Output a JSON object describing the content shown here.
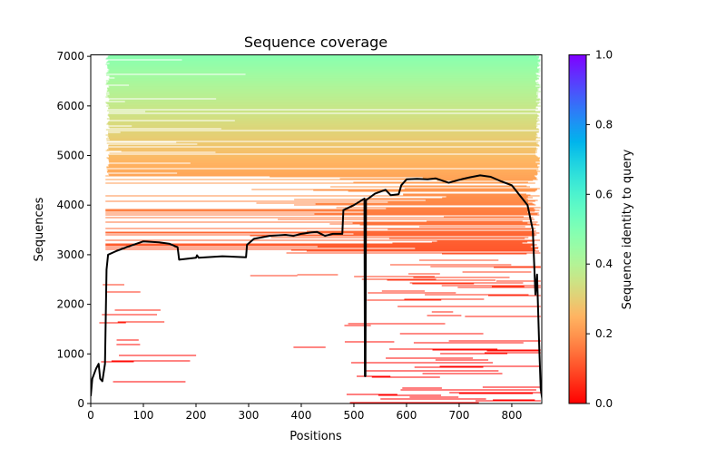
{
  "chart_data": {
    "type": "line",
    "title": "Sequence coverage",
    "xlabel": "Positions",
    "ylabel": "Sequences",
    "xlim": [
      0,
      857
    ],
    "ylim": [
      0,
      7030
    ],
    "xticks": [
      "0",
      "100",
      "200",
      "300",
      "400",
      "500",
      "600",
      "700",
      "800"
    ],
    "yticks": [
      "0",
      "1000",
      "2000",
      "3000",
      "4000",
      "5000",
      "6000",
      "7000"
    ],
    "grid": false,
    "coverage_line": {
      "color": "#000000",
      "x": [
        0,
        3,
        10,
        15,
        18,
        22,
        27,
        30,
        33,
        50,
        70,
        100,
        130,
        150,
        165,
        168,
        200,
        202,
        205,
        250,
        295,
        297,
        310,
        340,
        370,
        385,
        400,
        420,
        430,
        445,
        460,
        478,
        480,
        500,
        515,
        520,
        521,
        522,
        523,
        540,
        560,
        570,
        585,
        590,
        600,
        620,
        640,
        655,
        680,
        700,
        720,
        740,
        760,
        780,
        800,
        815,
        830,
        840,
        845,
        848,
        852,
        855,
        858
      ],
      "y": [
        150,
        500,
        700,
        800,
        500,
        450,
        800,
        2700,
        3000,
        3080,
        3160,
        3270,
        3250,
        3220,
        3150,
        2900,
        2940,
        2990,
        2940,
        2970,
        2950,
        3200,
        3320,
        3380,
        3400,
        3380,
        3420,
        3450,
        3460,
        3380,
        3420,
        3420,
        3900,
        4000,
        4100,
        4130,
        550,
        550,
        4100,
        4230,
        4310,
        4200,
        4220,
        4400,
        4520,
        4530,
        4520,
        4540,
        4450,
        4510,
        4560,
        4600,
        4570,
        4480,
        4400,
        4200,
        4000,
        3500,
        2200,
        2600,
        1200,
        300,
        80
      ]
    },
    "colorbar": {
      "label": "Sequence identity to query",
      "range": [
        0,
        1
      ],
      "ticks": [
        "0.0",
        "0.2",
        "0.4",
        "0.6",
        "0.8",
        "1.0"
      ],
      "colormap": "rainbow_r",
      "low_color": "#ff0000",
      "high_color": "#8000ff"
    }
  }
}
